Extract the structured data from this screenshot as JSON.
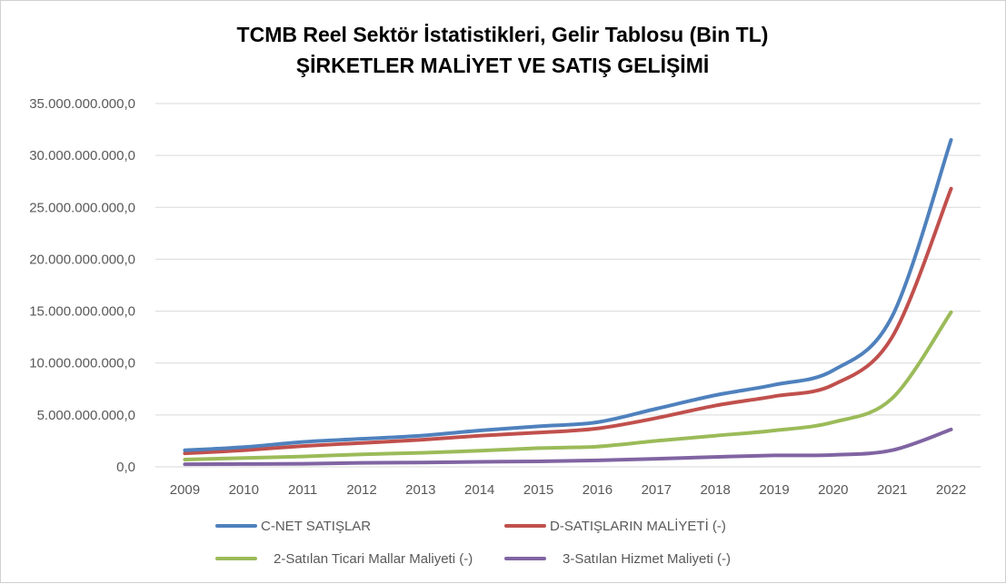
{
  "chart_data": {
    "type": "line",
    "title": "TCMB Reel Sektör İstatistikleri, Gelir Tablosu (Bin TL)",
    "subtitle": "ŞİRKETLER MALİYET VE SATIŞ GELİŞİMİ",
    "xlabel": "",
    "ylabel": "",
    "ylim": [
      0,
      35000000000
    ],
    "y_ticks": [
      "0,0",
      "5.000.000.000,0",
      "10.000.000.000,0",
      "15.000.000.000,0",
      "20.000.000.000,0",
      "25.000.000.000,0",
      "30.000.000.000,0",
      "35.000.000.000,0"
    ],
    "categories": [
      "2009",
      "2010",
      "2011",
      "2012",
      "2013",
      "2014",
      "2015",
      "2016",
      "2017",
      "2018",
      "2019",
      "2020",
      "2021",
      "2022"
    ],
    "grid": true,
    "legend_position": "bottom",
    "series": [
      {
        "name": "C-NET SATIŞLAR",
        "color": "#4f81bd",
        "values": [
          1600000000,
          1900000000,
          2400000000,
          2700000000,
          3000000000,
          3500000000,
          3900000000,
          4300000000,
          5600000000,
          6900000000,
          7900000000,
          9300000000,
          14500000000,
          31500000000
        ]
      },
      {
        "name": "D-SATIŞLARIN MALİYETİ   (-)",
        "color": "#c0504d",
        "values": [
          1300000000,
          1600000000,
          2000000000,
          2300000000,
          2600000000,
          3000000000,
          3300000000,
          3700000000,
          4700000000,
          5900000000,
          6800000000,
          7900000000,
          12500000000,
          26800000000
        ]
      },
      {
        "name": "2-Satılan Ticari Mallar Maliyeti (-)",
        "color": "#9bbb59",
        "values": [
          700000000,
          850000000,
          1000000000,
          1200000000,
          1350000000,
          1550000000,
          1800000000,
          1950000000,
          2500000000,
          3000000000,
          3500000000,
          4300000000,
          6600000000,
          14900000000
        ]
      },
      {
        "name": "3-Satılan Hizmet Maliyeti (-)",
        "color": "#8064a2",
        "values": [
          250000000,
          270000000,
          300000000,
          380000000,
          420000000,
          480000000,
          530000000,
          620000000,
          780000000,
          950000000,
          1100000000,
          1150000000,
          1600000000,
          3600000000
        ]
      }
    ]
  }
}
